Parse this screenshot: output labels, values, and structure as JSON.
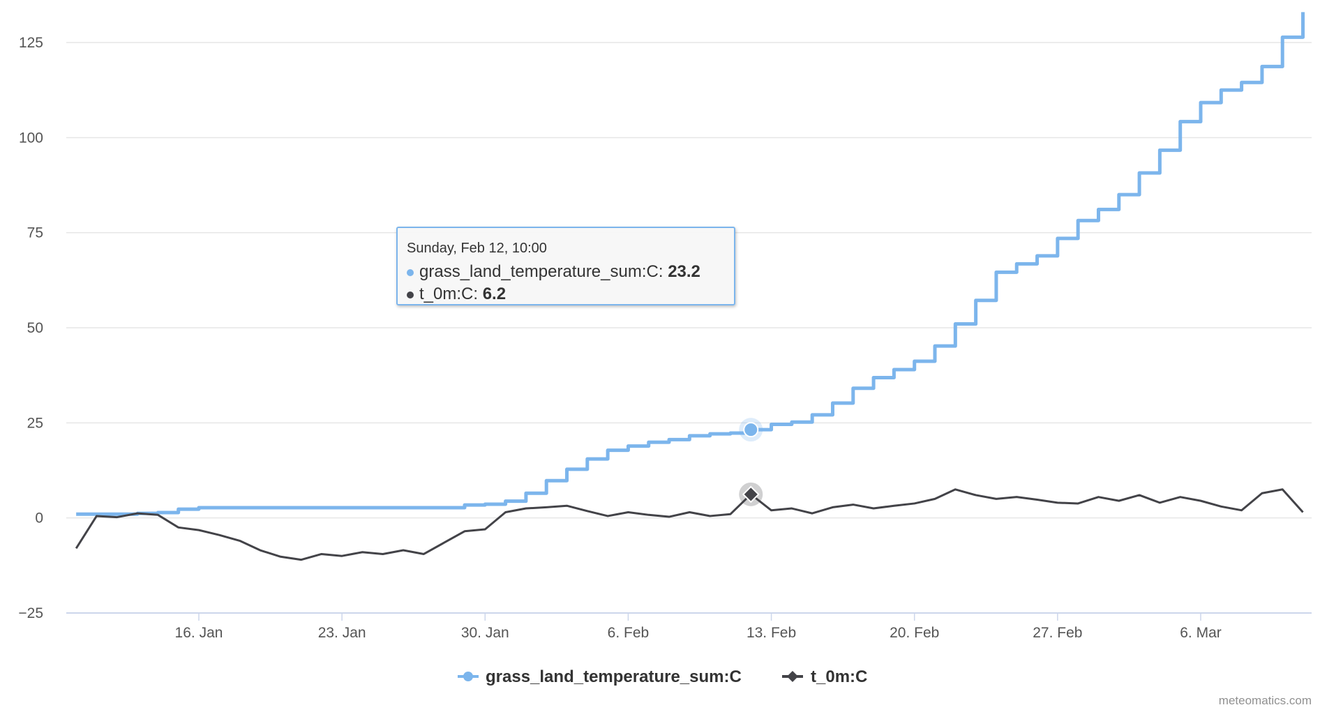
{
  "chart_data": {
    "type": "line",
    "title": "",
    "xlabel": "",
    "ylabel": "",
    "x_axis": {
      "type": "datetime",
      "range": [
        "2017-01-11",
        "2017-03-10"
      ],
      "tick_dates": [
        "2017-01-16",
        "2017-01-23",
        "2017-01-30",
        "2017-02-06",
        "2017-02-13",
        "2017-02-20",
        "2017-02-27",
        "2017-03-06"
      ],
      "tick_labels": [
        "16. Jan",
        "23. Jan",
        "30. Jan",
        "6. Feb",
        "13. Feb",
        "20. Feb",
        "27. Feb",
        "6. Mar"
      ]
    },
    "y_axis": {
      "range": [
        -25,
        125
      ],
      "ticks": [
        -25,
        0,
        25,
        50,
        75,
        100,
        125
      ],
      "tick_labels": [
        "−25",
        "0",
        "25",
        "50",
        "75",
        "100",
        "125"
      ],
      "grid": true
    },
    "legend": {
      "position": "bottom-center"
    },
    "series": [
      {
        "name": "grass_land_temperature_sum:C",
        "color": "#7cb5ec",
        "style": "step",
        "marker": "circle",
        "points": [
          [
            "2017-01-10",
            1.0
          ],
          [
            "2017-01-11",
            1.0
          ],
          [
            "2017-01-12",
            1.0
          ],
          [
            "2017-01-13",
            1.2
          ],
          [
            "2017-01-14",
            1.4
          ],
          [
            "2017-01-15",
            2.3
          ],
          [
            "2017-01-16",
            2.7
          ],
          [
            "2017-01-17",
            2.7
          ],
          [
            "2017-01-18",
            2.7
          ],
          [
            "2017-01-19",
            2.7
          ],
          [
            "2017-01-20",
            2.7
          ],
          [
            "2017-01-21",
            2.7
          ],
          [
            "2017-01-22",
            2.7
          ],
          [
            "2017-01-23",
            2.7
          ],
          [
            "2017-01-24",
            2.7
          ],
          [
            "2017-01-25",
            2.7
          ],
          [
            "2017-01-26",
            2.7
          ],
          [
            "2017-01-27",
            2.7
          ],
          [
            "2017-01-28",
            2.7
          ],
          [
            "2017-01-29",
            3.4
          ],
          [
            "2017-01-30",
            3.6
          ],
          [
            "2017-01-31",
            4.4
          ],
          [
            "2017-02-01",
            6.5
          ],
          [
            "2017-02-02",
            9.8
          ],
          [
            "2017-02-03",
            12.8
          ],
          [
            "2017-02-04",
            15.5
          ],
          [
            "2017-02-05",
            17.8
          ],
          [
            "2017-02-06",
            18.9
          ],
          [
            "2017-02-07",
            19.9
          ],
          [
            "2017-02-08",
            20.6
          ],
          [
            "2017-02-09",
            21.6
          ],
          [
            "2017-02-10",
            22.1
          ],
          [
            "2017-02-11",
            22.3
          ],
          [
            "2017-02-12",
            23.2
          ],
          [
            "2017-02-13",
            24.6
          ],
          [
            "2017-02-14",
            25.2
          ],
          [
            "2017-02-15",
            27.1
          ],
          [
            "2017-02-16",
            30.2
          ],
          [
            "2017-02-17",
            34.1
          ],
          [
            "2017-02-18",
            36.9
          ],
          [
            "2017-02-19",
            39.0
          ],
          [
            "2017-02-20",
            41.2
          ],
          [
            "2017-02-21",
            45.2
          ],
          [
            "2017-02-22",
            51.0
          ],
          [
            "2017-02-23",
            57.2
          ],
          [
            "2017-02-24",
            64.6
          ],
          [
            "2017-02-25",
            66.8
          ],
          [
            "2017-02-26",
            68.9
          ],
          [
            "2017-02-27",
            73.5
          ],
          [
            "2017-02-28",
            78.2
          ],
          [
            "2017-03-01",
            81.1
          ],
          [
            "2017-03-02",
            85.0
          ],
          [
            "2017-03-03",
            90.7
          ],
          [
            "2017-03-04",
            96.7
          ],
          [
            "2017-03-05",
            104.2
          ],
          [
            "2017-03-06",
            109.2
          ],
          [
            "2017-03-07",
            112.5
          ],
          [
            "2017-03-08",
            114.5
          ],
          [
            "2017-03-09",
            118.7
          ],
          [
            "2017-03-10",
            126.4
          ],
          [
            "2017-03-11",
            133.0
          ]
        ]
      },
      {
        "name": "t_0m:C",
        "color": "#434348",
        "style": "line",
        "marker": "diamond",
        "points": [
          [
            "2017-01-10",
            -8.0
          ],
          [
            "2017-01-11",
            0.5
          ],
          [
            "2017-01-12",
            0.2
          ],
          [
            "2017-01-13",
            1.2
          ],
          [
            "2017-01-14",
            0.8
          ],
          [
            "2017-01-15",
            -2.5
          ],
          [
            "2017-01-16",
            -3.2
          ],
          [
            "2017-01-17",
            -4.5
          ],
          [
            "2017-01-18",
            -6.0
          ],
          [
            "2017-01-19",
            -8.5
          ],
          [
            "2017-01-20",
            -10.2
          ],
          [
            "2017-01-21",
            -11.0
          ],
          [
            "2017-01-22",
            -9.5
          ],
          [
            "2017-01-23",
            -10.0
          ],
          [
            "2017-01-24",
            -9.0
          ],
          [
            "2017-01-25",
            -9.5
          ],
          [
            "2017-01-26",
            -8.5
          ],
          [
            "2017-01-27",
            -9.5
          ],
          [
            "2017-01-28",
            -6.5
          ],
          [
            "2017-01-29",
            -3.5
          ],
          [
            "2017-01-30",
            -3.0
          ],
          [
            "2017-01-31",
            1.5
          ],
          [
            "2017-02-01",
            2.5
          ],
          [
            "2017-02-02",
            2.8
          ],
          [
            "2017-02-03",
            3.2
          ],
          [
            "2017-02-04",
            1.8
          ],
          [
            "2017-02-05",
            0.5
          ],
          [
            "2017-02-06",
            1.5
          ],
          [
            "2017-02-07",
            0.8
          ],
          [
            "2017-02-08",
            0.3
          ],
          [
            "2017-02-09",
            1.5
          ],
          [
            "2017-02-10",
            0.5
          ],
          [
            "2017-02-11",
            1.0
          ],
          [
            "2017-02-12",
            6.2
          ],
          [
            "2017-02-13",
            2.0
          ],
          [
            "2017-02-14",
            2.5
          ],
          [
            "2017-02-15",
            1.2
          ],
          [
            "2017-02-16",
            2.8
          ],
          [
            "2017-02-17",
            3.5
          ],
          [
            "2017-02-18",
            2.5
          ],
          [
            "2017-02-19",
            3.2
          ],
          [
            "2017-02-20",
            3.8
          ],
          [
            "2017-02-21",
            5.0
          ],
          [
            "2017-02-22",
            7.5
          ],
          [
            "2017-02-23",
            6.0
          ],
          [
            "2017-02-24",
            5.0
          ],
          [
            "2017-02-25",
            5.5
          ],
          [
            "2017-02-26",
            4.8
          ],
          [
            "2017-02-27",
            4.0
          ],
          [
            "2017-02-28",
            3.8
          ],
          [
            "2017-03-01",
            5.5
          ],
          [
            "2017-03-02",
            4.5
          ],
          [
            "2017-03-03",
            6.0
          ],
          [
            "2017-03-04",
            4.0
          ],
          [
            "2017-03-05",
            5.5
          ],
          [
            "2017-03-06",
            4.5
          ],
          [
            "2017-03-07",
            3.0
          ],
          [
            "2017-03-08",
            2.0
          ],
          [
            "2017-03-09",
            6.5
          ],
          [
            "2017-03-10",
            7.5
          ],
          [
            "2017-03-11",
            1.5
          ]
        ]
      }
    ]
  },
  "tooltip": {
    "header": "Sunday, Feb 12, 10:00",
    "rows": [
      {
        "label": "grass_land_temperature_sum:C: ",
        "value": "23.2",
        "color": "#7cb5ec"
      },
      {
        "label": "t_0m:C: ",
        "value": "6.2",
        "color": "#434348"
      }
    ],
    "hover_date": "2017-02-12"
  },
  "credits": "meteomatics.com"
}
